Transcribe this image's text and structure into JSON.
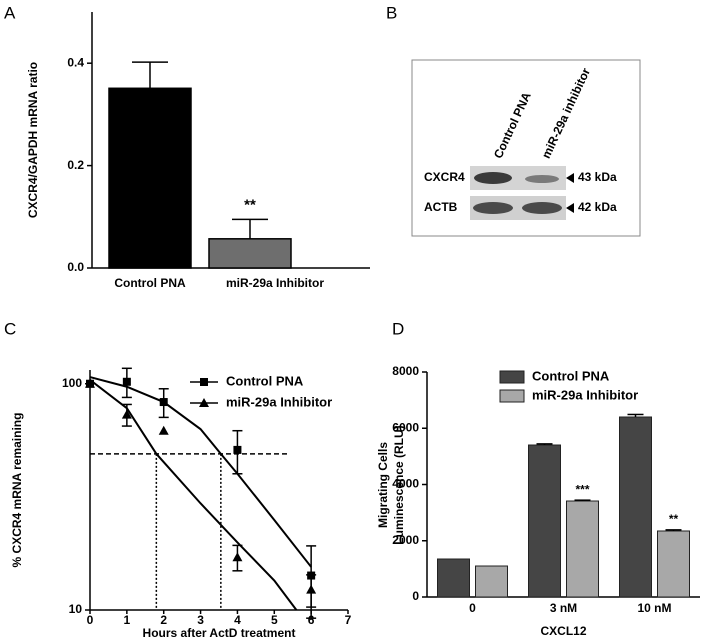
{
  "chart_data": [
    {
      "type": "bar",
      "panel_label": "A",
      "ylabel": "CXCR4/GAPDH mRNA ratio",
      "categories": [
        "Control PNA",
        "miR-29a Inhibitor"
      ],
      "values": [
        0.351,
        0.057
      ],
      "errors": [
        0.051,
        0.038
      ],
      "colors": [
        "#000000",
        "#6e6e6e"
      ],
      "annotations": [
        null,
        "**"
      ],
      "ylim": [
        0,
        0.5
      ],
      "yticks": [
        {
          "value": 0,
          "label": "0.0"
        },
        0.2,
        0.4
      ]
    },
    {
      "type": "blot",
      "panel_label": "B",
      "lanes": [
        "Control PNA",
        "miR-29a inhibitor"
      ],
      "rows": [
        {
          "name": "CXCR4",
          "size": "43 kDa"
        },
        {
          "name": "ACTB",
          "size": "42 kDa"
        }
      ]
    },
    {
      "type": "line",
      "panel_label": "C",
      "xlabel": "Hours after ActD treatment",
      "ylabel": "% CXCR4 mRNA remaining",
      "log_y": true,
      "x": [
        0,
        1,
        2,
        4,
        6
      ],
      "series": [
        {
          "name": "Control PNA",
          "marker": "square",
          "color": "#000000",
          "values": [
            100,
            102,
            83,
            51,
            14.2
          ],
          "errors": [
            0,
            15,
            12,
            11,
            5
          ],
          "fit_x": [
            0,
            1,
            2,
            3,
            3.55,
            4,
            5,
            6
          ],
          "fit": [
            107,
            97,
            83,
            63,
            49,
            40,
            25,
            15.5
          ]
        },
        {
          "name": "miR-29a Inhibitor",
          "marker": "triangle",
          "color": "#000000",
          "values": [
            100,
            73,
            62,
            17.1,
            12.3
          ],
          "errors": [
            0,
            8,
            0,
            2.2,
            2
          ],
          "fit_x": [
            0,
            1,
            1.8,
            3,
            4,
            5,
            5.6
          ],
          "fit": [
            104,
            78,
            49,
            29.6,
            19.9,
            13.5,
            10
          ]
        }
      ],
      "reference_y": 49,
      "reference_x": [
        1.8,
        3.55
      ],
      "xlim": [
        0,
        7
      ],
      "ylim": [
        10,
        115
      ],
      "xticks": [
        0,
        1,
        2,
        3,
        4,
        5,
        6,
        7
      ],
      "yticks": [
        10,
        100
      ]
    },
    {
      "type": "grouped_bar",
      "panel_label": "D",
      "ylabel": [
        "Migrating Cells",
        "Luminescence (RLU)"
      ],
      "xlabel": "CXCL12",
      "categories": [
        "0",
        "3 nM",
        "10 nM"
      ],
      "series": [
        {
          "name": "Control PNA",
          "color": "#454545",
          "values": [
            1351,
            5404,
            6400
          ],
          "errors": [
            0,
            40,
            90
          ],
          "annotations": [
            null,
            null,
            null
          ]
        },
        {
          "name": "miR-29a Inhibitor",
          "color": "#a8a8a8",
          "values": [
            1102,
            3413,
            2347
          ],
          "errors": [
            0,
            30,
            40
          ],
          "annotations": [
            null,
            "***",
            "**"
          ]
        }
      ],
      "ylim": [
        0,
        8000
      ],
      "yticks": [
        0,
        2000,
        4000,
        6000,
        8000
      ]
    }
  ]
}
